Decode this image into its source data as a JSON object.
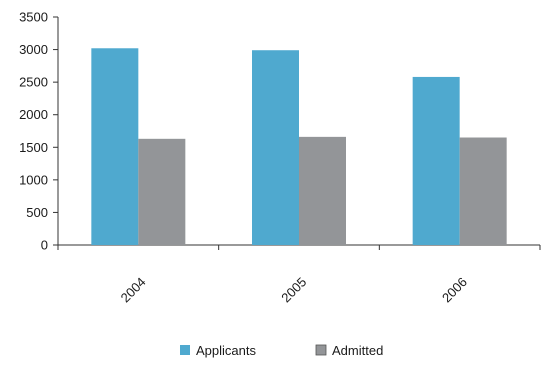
{
  "chart_data": {
    "type": "bar",
    "categories": [
      "2004",
      "2005",
      "2006"
    ],
    "series": [
      {
        "name": "Applicants",
        "values": [
          3020,
          2990,
          2580
        ],
        "color": "#4fa9cf"
      },
      {
        "name": "Admitted",
        "values": [
          1630,
          1660,
          1650
        ],
        "color": "#939598"
      }
    ],
    "ylim": [
      0,
      3500
    ],
    "yticks": [
      0,
      500,
      1000,
      1500,
      2000,
      2500,
      3000,
      3500
    ],
    "title": "",
    "xlabel": "",
    "ylabel": "",
    "grid": false,
    "legend_position": "bottom",
    "x_tick_rotation_deg": -45
  }
}
